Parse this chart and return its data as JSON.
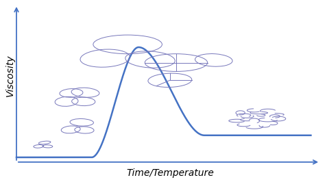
{
  "curve_color": "#4472C4",
  "axis_color": "#4472C4",
  "granule_color": "#7777BB",
  "background_color": "#ffffff",
  "xlabel": "Time/Temperature",
  "ylabel": "Viscosity",
  "xlabel_fontsize": 10,
  "ylabel_fontsize": 10,
  "figsize": [
    4.74,
    2.66
  ],
  "dpi": 100,
  "curve_lw": 1.8
}
